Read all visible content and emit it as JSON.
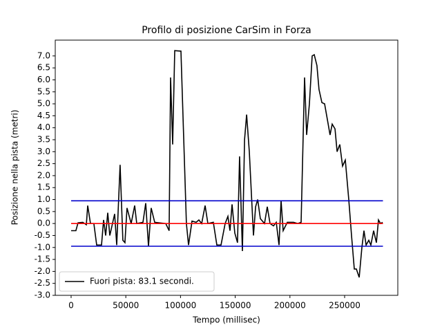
{
  "chart_data": {
    "type": "line",
    "title": "Profilo di posizione CarSim in Forza",
    "x_label": "Tempo (millisec)",
    "y_label": "Posizione nella pista (metri)",
    "xlim": [
      -14500,
      298600
    ],
    "ylim": [
      -3.0,
      7.66
    ],
    "xticks": [
      0,
      50000,
      100000,
      150000,
      200000,
      250000
    ],
    "yticks": [
      {
        "value": -3,
        "label": "-3.0"
      },
      -2.5,
      {
        "value": -2,
        "label": "-2.0"
      },
      -1.5,
      {
        "value": -1,
        "label": "-1.0"
      },
      -0.5,
      {
        "value": 0,
        "label": "0.0"
      },
      0.5,
      {
        "value": 1,
        "label": "1.0"
      },
      1.5,
      {
        "value": 2,
        "label": "2.0"
      },
      2.5,
      {
        "value": 3,
        "label": "3.0"
      },
      3.5,
      {
        "value": 4,
        "label": "4.0"
      },
      4.5,
      {
        "value": 5,
        "label": "5.0"
      },
      5.5,
      {
        "value": 6,
        "label": "6.0"
      },
      6.5,
      {
        "value": 7,
        "label": "7.0"
      }
    ],
    "legend_position": "lower left",
    "series": [
      {
        "name": "Fuori pista: 83.1 secondi.",
        "color": "#000000",
        "x": [
          0,
          4400,
          6300,
          10700,
          13900,
          15200,
          17700,
          20800,
          23400,
          27800,
          29700,
          31600,
          33500,
          35400,
          39800,
          41700,
          44800,
          47300,
          49200,
          51100,
          54900,
          58100,
          60000,
          65700,
          68200,
          70700,
          73200,
          76400,
          86500,
          89600,
          90900,
          92800,
          94700,
          100400,
          105400,
          107300,
          110500,
          114300,
          116800,
          119300,
          122500,
          125000,
          130000,
          133200,
          137000,
          140800,
          143300,
          145200,
          147100,
          149600,
          152100,
          154000,
          156600,
          158500,
          160400,
          162900,
          166700,
          168600,
          170500,
          173000,
          176800,
          179300,
          181800,
          185000,
          187500,
          190000,
          191900,
          193800,
          197600,
          203300,
          207100,
          210200,
          213400,
          215300,
          217800,
          220300,
          222200,
          224700,
          226600,
          229200,
          231700,
          234800,
          236700,
          238600,
          241200,
          243100,
          245600,
          248100,
          250600,
          253800,
          256300,
          258800,
          260700,
          263300,
          265800,
          267700,
          269600,
          272100,
          274000,
          276500,
          279000,
          280900,
          282800,
          284700
        ],
        "values": [
          -0.3,
          -0.3,
          0.03,
          0.05,
          -0.05,
          0.75,
          0.0,
          0.0,
          -0.9,
          -0.9,
          0.15,
          -0.5,
          0.45,
          -0.5,
          0.4,
          -0.9,
          2.45,
          -0.7,
          -0.8,
          0.65,
          0.0,
          0.75,
          0.0,
          0.05,
          0.85,
          -0.95,
          0.65,
          0.05,
          0.0,
          -0.3,
          6.1,
          3.3,
          7.22,
          7.2,
          0.0,
          -0.9,
          0.1,
          0.05,
          0.15,
          0.0,
          0.75,
          0.0,
          0.05,
          -0.9,
          -0.9,
          0.0,
          0.3,
          -0.3,
          0.8,
          -0.4,
          -0.8,
          2.8,
          -1.15,
          3.5,
          4.55,
          3.0,
          -0.5,
          0.7,
          1.0,
          0.2,
          0.0,
          0.7,
          0.0,
          -0.1,
          0.05,
          -0.9,
          0.95,
          -0.3,
          0.05,
          0.05,
          0.0,
          0.05,
          6.1,
          3.7,
          5.0,
          7.0,
          7.05,
          6.6,
          5.6,
          5.05,
          5.0,
          4.2,
          3.7,
          4.15,
          3.95,
          3.0,
          3.3,
          2.4,
          2.65,
          1.0,
          -0.5,
          -1.9,
          -1.9,
          -2.25,
          -1.0,
          -0.3,
          -0.9,
          -0.7,
          -0.9,
          -0.3,
          -0.8,
          0.15,
          0.0,
          0.05
        ]
      },
      {
        "color": "#ff0000",
        "x": [
          0,
          285000
        ],
        "values": [
          0,
          0
        ]
      },
      {
        "color": "#0000cc",
        "x": [
          0,
          285000
        ],
        "values": [
          0.95,
          0.95
        ]
      },
      {
        "color": "#0000cc",
        "x": [
          0,
          285000
        ],
        "values": [
          -0.95,
          -0.95
        ]
      }
    ]
  }
}
